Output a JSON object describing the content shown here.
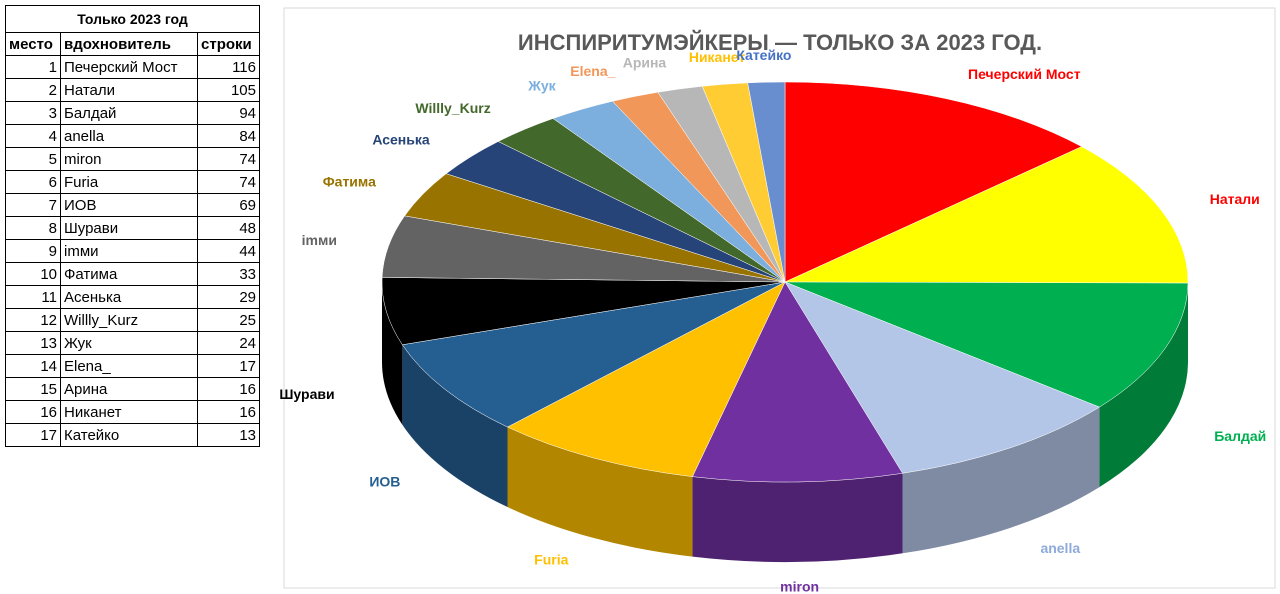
{
  "table": {
    "title": "Только 2023 год",
    "header": [
      "место",
      "вдохновитель",
      "строки"
    ],
    "rows": [
      [
        1,
        "Печерский Мост",
        116
      ],
      [
        2,
        "Натали",
        105
      ],
      [
        3,
        "Балдай",
        94
      ],
      [
        4,
        "anella",
        84
      ],
      [
        5,
        "miron",
        74
      ],
      [
        6,
        "Furia",
        74
      ],
      [
        7,
        "ИОВ",
        69
      ],
      [
        8,
        "Шурави",
        48
      ],
      [
        9,
        "imми",
        44
      ],
      [
        10,
        "Фатима",
        33
      ],
      [
        11,
        "Асенька",
        29
      ],
      [
        12,
        "Willly_Kurz",
        25
      ],
      [
        13,
        "Жук",
        24
      ],
      [
        14,
        "Elena_",
        17
      ],
      [
        15,
        "Арина",
        16
      ],
      [
        16,
        "Никанет",
        16
      ],
      [
        17,
        "Катейко",
        13
      ]
    ]
  },
  "chart_data": {
    "type": "pie",
    "title": "ИНСПИРИТУМЭЙКЕРЫ — ТОЛЬКО ЗА 2023 ГОД.",
    "categories": [
      "Печерский Мост",
      "Натали",
      "Балдай",
      "anella",
      "miron",
      "Furia",
      "ИОВ",
      "Шурави",
      "imми",
      "Фатима",
      "Асенька",
      "Willly_Kurz",
      "Жук",
      "Elena_",
      "Арина",
      "Никанет",
      "Катейко"
    ],
    "values": [
      116,
      105,
      94,
      84,
      74,
      74,
      69,
      48,
      44,
      33,
      29,
      25,
      24,
      17,
      16,
      16,
      13
    ],
    "colors": [
      "#ff0000",
      "#ffff00",
      "#00b050",
      "#b4c6e7",
      "#7030a0",
      "#ffc000",
      "#255e91",
      "#000000",
      "#636363",
      "#997300",
      "#264478",
      "#43682b",
      "#7cafdd",
      "#f1975a",
      "#b7b7b7",
      "#ffcd33",
      "#698ed0"
    ],
    "label_colors": [
      "#ff0000",
      "#ff0000",
      "#00b050",
      "#8eaadb",
      "#7030a0",
      "#ffc000",
      "#255e91",
      "#000000",
      "#636363",
      "#997300",
      "#264478",
      "#43682b",
      "#7cafdd",
      "#f1975a",
      "#b7b7b7",
      "#ffc000",
      "#4472c4"
    ]
  }
}
